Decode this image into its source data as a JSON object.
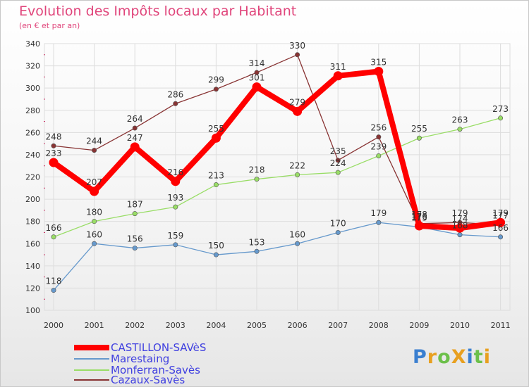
{
  "title": "Evolution des Impôts locaux par Habitant",
  "subtitle": "(en € et par an)",
  "brand": {
    "text": "ProXiti",
    "letters": [
      {
        "ch": "P",
        "color": "#3a7fd0"
      },
      {
        "ch": "r",
        "color": "#e8a020"
      },
      {
        "ch": "o",
        "color": "#6cc04a"
      },
      {
        "ch": "X",
        "color": "#e8a020"
      },
      {
        "ch": "i",
        "color": "#3a7fd0"
      },
      {
        "ch": "t",
        "color": "#6cc04a"
      },
      {
        "ch": "i",
        "color": "#e8a020"
      }
    ]
  },
  "chart_data": {
    "type": "line",
    "title": "Evolution des Impôts locaux par Habitant",
    "subtitle": "(en € et par an)",
    "xlabel": "",
    "ylabel": "",
    "x": [
      "2000",
      "2001",
      "2002",
      "2003",
      "2004",
      "2005",
      "2006",
      "2007",
      "2008",
      "2009",
      "2010",
      "2011"
    ],
    "ylim": [
      100,
      340
    ],
    "yticks": [
      100,
      120,
      140,
      160,
      180,
      200,
      220,
      240,
      260,
      280,
      300,
      320,
      340
    ],
    "grid": true,
    "legend_position": "bottom-left",
    "series": [
      {
        "name": "CASTILLON-SAVèS",
        "color": "#ff0000",
        "emphasis": true,
        "values": [
          233,
          207,
          247,
          216,
          255,
          301,
          279,
          311,
          315,
          176,
          174,
          179
        ]
      },
      {
        "name": "Marestaing",
        "color": "#6699cc",
        "emphasis": false,
        "values": [
          118,
          160,
          156,
          159,
          150,
          153,
          160,
          170,
          179,
          175,
          168,
          166
        ]
      },
      {
        "name": "Monferran-Savès",
        "color": "#99dd66",
        "emphasis": false,
        "values": [
          166,
          180,
          187,
          193,
          213,
          218,
          222,
          224,
          239,
          255,
          263,
          273
        ]
      },
      {
        "name": "Cazaux-Savès",
        "color": "#883333",
        "emphasis": false,
        "values": [
          248,
          244,
          264,
          286,
          299,
          314,
          330,
          235,
          256,
          178,
          179,
          177
        ]
      }
    ]
  }
}
